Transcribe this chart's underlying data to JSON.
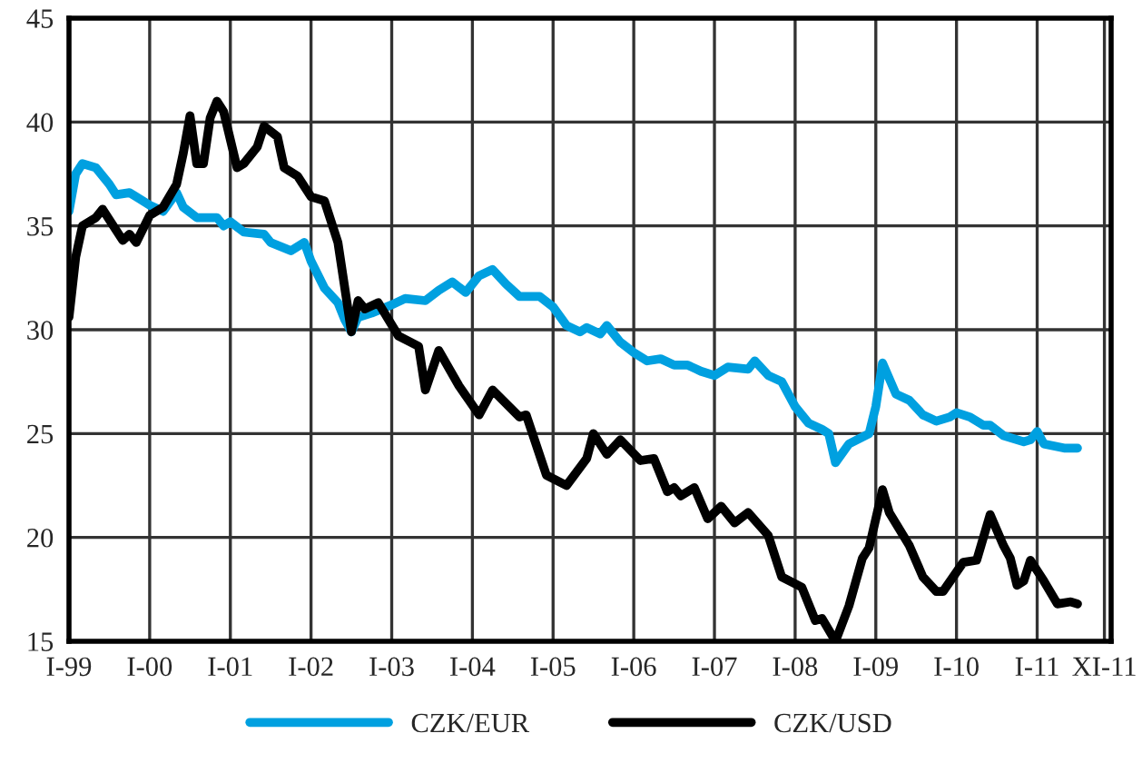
{
  "chart_data": {
    "type": "line",
    "xlim": [
      "1999-01",
      "2011-12"
    ],
    "ylim": [
      15,
      45
    ],
    "yticks": [
      15,
      20,
      25,
      30,
      35,
      40,
      45
    ],
    "xticks": [
      {
        "value": "1999-01",
        "label": "I-99"
      },
      {
        "value": "2000-01",
        "label": "I-00"
      },
      {
        "value": "2001-01",
        "label": "I-01"
      },
      {
        "value": "2002-01",
        "label": "I-02"
      },
      {
        "value": "2003-01",
        "label": "I-03"
      },
      {
        "value": "2004-01",
        "label": "I-04"
      },
      {
        "value": "2005-01",
        "label": "I-05"
      },
      {
        "value": "2006-01",
        "label": "I-06"
      },
      {
        "value": "2007-01",
        "label": "I-07"
      },
      {
        "value": "2008-01",
        "label": "I-08"
      },
      {
        "value": "2009-01",
        "label": "I-09"
      },
      {
        "value": "2010-01",
        "label": "I-10"
      },
      {
        "value": "2011-01",
        "label": "I-11"
      },
      {
        "value": "2011-11",
        "label": "XI-11"
      }
    ],
    "grid": true,
    "legend": "bottom",
    "marker": "none",
    "line_style": "solid",
    "series": [
      {
        "name": "CZK/EUR",
        "color": "#00a0e0",
        "x": [
          "1999-01",
          "1999-02",
          "1999-03",
          "1999-05",
          "1999-07",
          "1999-08",
          "1999-10",
          "1999-11",
          "2000-01",
          "2000-03",
          "2000-05",
          "2000-06",
          "2000-08",
          "2000-11",
          "2000-12",
          "2001-01",
          "2001-03",
          "2001-06",
          "2001-07",
          "2001-10",
          "2001-12",
          "2002-01",
          "2002-03",
          "2002-05",
          "2002-06",
          "2002-07",
          "2002-08",
          "2002-10",
          "2003-01",
          "2003-03",
          "2003-06",
          "2003-08",
          "2003-10",
          "2003-12",
          "2004-02",
          "2004-04",
          "2004-06",
          "2004-08",
          "2004-11",
          "2005-01",
          "2005-03",
          "2005-05",
          "2005-06",
          "2005-08",
          "2005-09",
          "2005-11",
          "2006-01",
          "2006-03",
          "2006-05",
          "2006-07",
          "2006-09",
          "2006-11",
          "2007-01",
          "2007-03",
          "2007-06",
          "2007-07",
          "2007-09",
          "2007-11",
          "2008-01",
          "2008-03",
          "2008-05",
          "2008-06",
          "2008-07",
          "2008-09",
          "2008-12",
          "2009-01",
          "2009-02",
          "2009-04",
          "2009-06",
          "2009-08",
          "2009-10",
          "2009-12",
          "2010-01",
          "2010-03",
          "2010-05",
          "2010-06",
          "2010-08",
          "2010-11",
          "2010-12",
          "2011-01",
          "2011-02",
          "2011-05",
          "2011-07"
        ],
        "values": [
          35.7,
          37.5,
          38.0,
          37.8,
          37.0,
          36.5,
          36.6,
          36.4,
          36.0,
          35.7,
          36.6,
          35.9,
          35.4,
          35.4,
          35.0,
          35.2,
          34.7,
          34.6,
          34.2,
          33.8,
          34.2,
          33.3,
          32.0,
          31.3,
          30.5,
          29.9,
          30.6,
          30.8,
          31.2,
          31.5,
          31.4,
          31.9,
          32.3,
          31.8,
          32.6,
          32.9,
          32.2,
          31.6,
          31.6,
          31.1,
          30.2,
          29.9,
          30.1,
          29.8,
          30.2,
          29.4,
          28.9,
          28.5,
          28.6,
          28.3,
          28.3,
          28.0,
          27.8,
          28.2,
          28.1,
          28.5,
          27.8,
          27.5,
          26.3,
          25.5,
          25.2,
          25.0,
          23.6,
          24.5,
          25.0,
          26.3,
          28.4,
          26.9,
          26.6,
          25.9,
          25.6,
          25.8,
          26.0,
          25.8,
          25.4,
          25.4,
          24.9,
          24.6,
          24.7,
          25.1,
          24.5,
          24.3,
          24.3
        ]
      },
      {
        "name": "CZK/USD",
        "color": "#000000",
        "x": [
          "1999-01",
          "1999-02",
          "1999-03",
          "1999-05",
          "1999-06",
          "1999-07",
          "1999-09",
          "1999-10",
          "1999-11",
          "2000-01",
          "2000-03",
          "2000-05",
          "2000-06",
          "2000-07",
          "2000-08",
          "2000-09",
          "2000-10",
          "2000-11",
          "2000-12",
          "2001-02",
          "2001-03",
          "2001-05",
          "2001-06",
          "2001-08",
          "2001-09",
          "2001-11",
          "2002-01",
          "2002-03",
          "2002-05",
          "2002-07",
          "2002-08",
          "2002-09",
          "2002-11",
          "2003-02",
          "2003-05",
          "2003-06",
          "2003-08",
          "2003-11",
          "2004-02",
          "2004-04",
          "2004-08",
          "2004-09",
          "2004-12",
          "2005-03",
          "2005-06",
          "2005-07",
          "2005-09",
          "2005-11",
          "2006-02",
          "2006-04",
          "2006-06",
          "2006-07",
          "2006-08",
          "2006-10",
          "2006-12",
          "2007-02",
          "2007-04",
          "2007-06",
          "2007-09",
          "2007-11",
          "2008-02",
          "2008-04",
          "2008-05",
          "2008-07",
          "2008-09",
          "2008-11",
          "2008-12",
          "2009-02",
          "2009-03",
          "2009-06",
          "2009-08",
          "2009-10",
          "2009-11",
          "2010-02",
          "2010-04",
          "2010-06",
          "2010-08",
          "2010-09",
          "2010-10",
          "2010-11",
          "2010-12",
          "2011-02",
          "2011-04",
          "2011-06",
          "2011-07"
        ],
        "values": [
          30.6,
          33.5,
          35.0,
          35.4,
          35.8,
          35.3,
          34.3,
          34.6,
          34.2,
          35.5,
          35.9,
          37.0,
          38.5,
          40.3,
          38.0,
          38.0,
          40.2,
          41.0,
          40.5,
          37.8,
          38.0,
          38.8,
          39.8,
          39.3,
          37.8,
          37.4,
          36.4,
          36.2,
          34.2,
          29.9,
          31.4,
          31.0,
          31.3,
          29.7,
          29.2,
          27.1,
          29.0,
          27.3,
          25.9,
          27.1,
          25.8,
          25.9,
          23.0,
          22.5,
          23.8,
          25.0,
          24.0,
          24.7,
          23.7,
          23.8,
          22.2,
          22.4,
          22.0,
          22.4,
          20.9,
          21.5,
          20.7,
          21.2,
          20.1,
          18.1,
          17.6,
          16.0,
          16.1,
          15.0,
          16.7,
          19.0,
          19.5,
          22.3,
          21.2,
          19.6,
          18.1,
          17.4,
          17.4,
          18.8,
          18.9,
          21.1,
          19.6,
          19.0,
          17.7,
          17.9,
          18.9,
          17.9,
          16.8,
          16.9,
          16.8
        ]
      }
    ]
  }
}
